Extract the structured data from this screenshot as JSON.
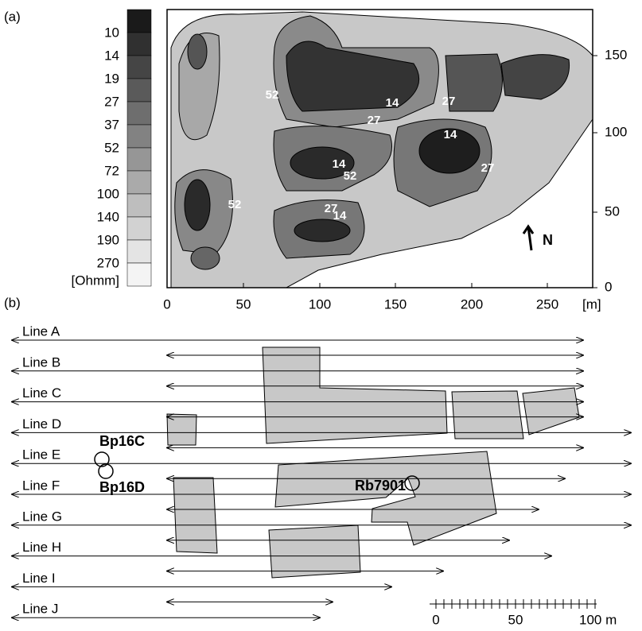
{
  "panel_a": {
    "label": "(a)",
    "colorbar": {
      "labels": [
        "10",
        "14",
        "19",
        "27",
        "37",
        "52",
        "72",
        "100",
        "140",
        "190",
        "270",
        "[Ohmm]"
      ]
    },
    "x_ticks": [
      "0",
      "50",
      "100",
      "150",
      "200",
      "250",
      "[m]"
    ],
    "y_ticks": [
      "0",
      "50",
      "100",
      "150"
    ],
    "contour_labels": [
      "52",
      "14",
      "27",
      "27",
      "14",
      "14",
      "52",
      "27",
      "52",
      "27",
      "14"
    ],
    "north": "N"
  },
  "panel_b": {
    "label": "(b)",
    "lines": [
      "Line A",
      "Line B",
      "Line C",
      "Line D",
      "Line E",
      "Line F",
      "Line G",
      "Line H",
      "Line I",
      "Line J"
    ],
    "boreholes": [
      "Bp16C",
      "Bp16D",
      "Rb7901"
    ],
    "scale_labels": [
      "0",
      "50",
      "100 m"
    ]
  }
}
